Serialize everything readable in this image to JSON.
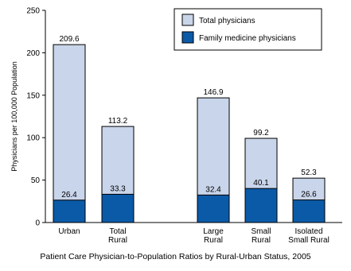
{
  "chart_data": {
    "type": "bar",
    "stacked": false,
    "overlaid": true,
    "categories": [
      "Urban",
      "Total\nRural",
      "Large\nRural",
      "Small\nRural",
      "Isolated\nSmall Rural"
    ],
    "series": [
      {
        "name": "Total physicians",
        "values": [
          209.6,
          113.2,
          146.9,
          99.2,
          52.3
        ],
        "color": "#c9d5ea"
      },
      {
        "name": "Family medicine physicians",
        "values": [
          26.4,
          33.3,
          32.4,
          40.1,
          26.6
        ],
        "color": "#0b5aa8"
      }
    ],
    "value_labels": {
      "total": [
        "209.6",
        "113.2",
        "146.9",
        "99.2",
        "52.3"
      ],
      "family": [
        "26.4",
        "33.3",
        "32.4",
        "40.1",
        "26.6"
      ]
    },
    "ylabel": "Physicians per 100,000 Population",
    "xlabel": "",
    "ylim": [
      0,
      250
    ],
    "yticks": [
      0,
      50,
      100,
      150,
      200,
      250
    ],
    "legend_position": "top-right",
    "grid": false
  },
  "caption": "Patient Care Physician-to-Population Ratios by Rural-Urban Status, 2005"
}
